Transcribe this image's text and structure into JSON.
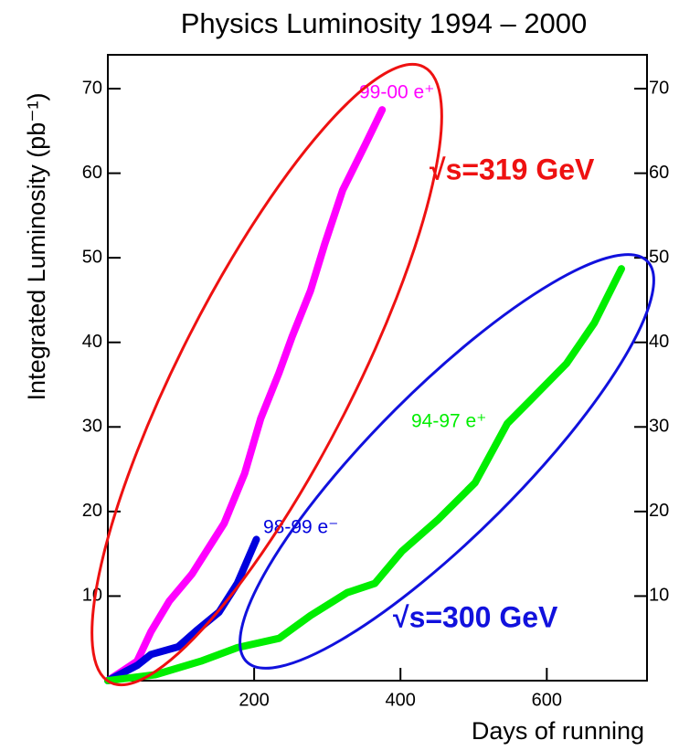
{
  "chart_data": {
    "type": "line",
    "title": "Physics Luminosity 1994 – 2000",
    "xlabel": "Days of running",
    "ylabel": "Integrated Luminosity (pb⁻¹)",
    "xlim": [
      0,
      737
    ],
    "ylim": [
      0,
      74
    ],
    "xticks": [
      200,
      400,
      600
    ],
    "yticks": [
      10,
      20,
      30,
      40,
      50,
      60,
      70
    ],
    "grid": false,
    "right_axis_labels": true,
    "annotations": [
      "√s=319 GeV",
      "√s=300 GeV"
    ],
    "series": [
      {
        "name": "99-00 e⁺",
        "color": "#ff00ff",
        "x": [
          0,
          40,
          59,
          84,
          115,
          159,
          187,
          209,
          234,
          252,
          277,
          296,
          321,
          352,
          375
        ],
        "values": [
          0,
          2.3,
          5.8,
          9.4,
          12.6,
          18.6,
          24.5,
          31,
          36.4,
          40.7,
          46.1,
          51.5,
          58,
          63.4,
          67.5
        ]
      },
      {
        "name": "98-99 e⁻",
        "color": "#0000dd",
        "x": [
          0,
          40,
          59,
          96,
          121,
          152,
          177,
          203
        ],
        "values": [
          0,
          1.8,
          3.1,
          4,
          5.9,
          8.1,
          11.5,
          16.7
        ]
      },
      {
        "name": "94-97 e⁺",
        "color": "#00ee00",
        "x": [
          0,
          65,
          127,
          177,
          234,
          277,
          327,
          365,
          402,
          452,
          502,
          546,
          577,
          627,
          665,
          702
        ],
        "values": [
          0,
          0.7,
          2.3,
          3.9,
          5,
          7.7,
          10.4,
          11.5,
          15.3,
          19.1,
          23.4,
          30.4,
          33.1,
          37.5,
          42.3,
          48.7
        ]
      }
    ]
  }
}
